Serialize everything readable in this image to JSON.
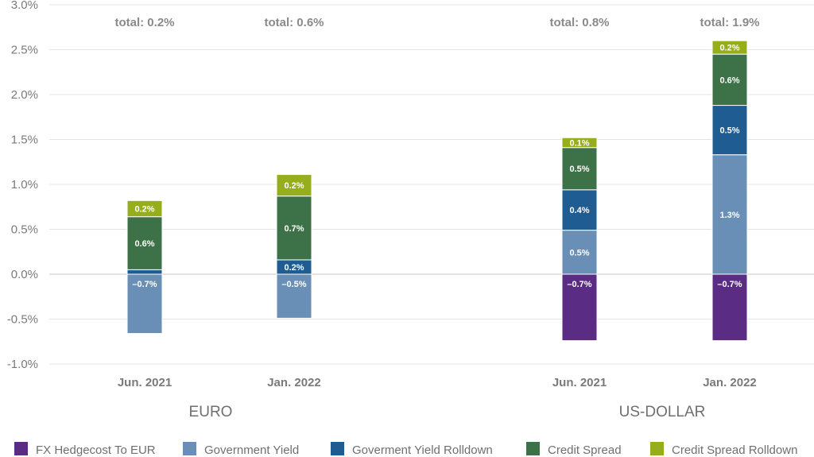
{
  "chart_data": {
    "type": "bar",
    "stacked": true,
    "ylim": [
      -1.0,
      3.0
    ],
    "yticks": [
      -1.0,
      -0.5,
      0.0,
      0.5,
      1.0,
      1.5,
      2.0,
      2.5,
      3.0
    ],
    "ytick_labels": [
      "-1.0%",
      "-0.5%",
      "0.0%",
      "0.5%",
      "1.0%",
      "1.5%",
      "2.0%",
      "2.5%",
      "3.0%"
    ],
    "grid": true,
    "legend_position": "bottom",
    "groups": [
      "EURO",
      "US-DOLLAR"
    ],
    "categories": [
      "Jun. 2021",
      "Jan. 2022",
      "Jun. 2021",
      "Jan. 2022"
    ],
    "category_group": [
      0,
      0,
      1,
      1
    ],
    "totals": [
      "total: 0.2%",
      "total: 0.6%",
      "total: 0.8%",
      "total: 1.9%"
    ],
    "series": [
      {
        "name": "FX Hedgecost To EUR",
        "color": "#5b2c83",
        "values": [
          0,
          0,
          -0.74,
          -0.74
        ],
        "labels": [
          "",
          "",
          "–0.7%",
          "–0.7%"
        ]
      },
      {
        "name": "Government Yield",
        "color": "#6a8fb6",
        "values": [
          -0.66,
          -0.49,
          0.49,
          1.33
        ],
        "labels": [
          "–0.7%",
          "–0.5%",
          "0.5%",
          "1.3%"
        ]
      },
      {
        "name": "Goverment Yield Rolldown",
        "color": "#1f5c91",
        "values": [
          0.05,
          0.16,
          0.45,
          0.55
        ],
        "labels": [
          "",
          "0.2%",
          "0.4%",
          "0.5%"
        ]
      },
      {
        "name": "Credit Spread",
        "color": "#3d7147",
        "values": [
          0.59,
          0.71,
          0.47,
          0.57
        ],
        "labels": [
          "0.6%",
          "0.7%",
          "0.5%",
          "0.6%"
        ]
      },
      {
        "name": "Credit Spread Rolldown",
        "color": "#96ad1c",
        "values": [
          0.18,
          0.24,
          0.11,
          0.15
        ],
        "labels": [
          "0.2%",
          "0.2%",
          "0.1%",
          "0.2%"
        ]
      }
    ]
  }
}
